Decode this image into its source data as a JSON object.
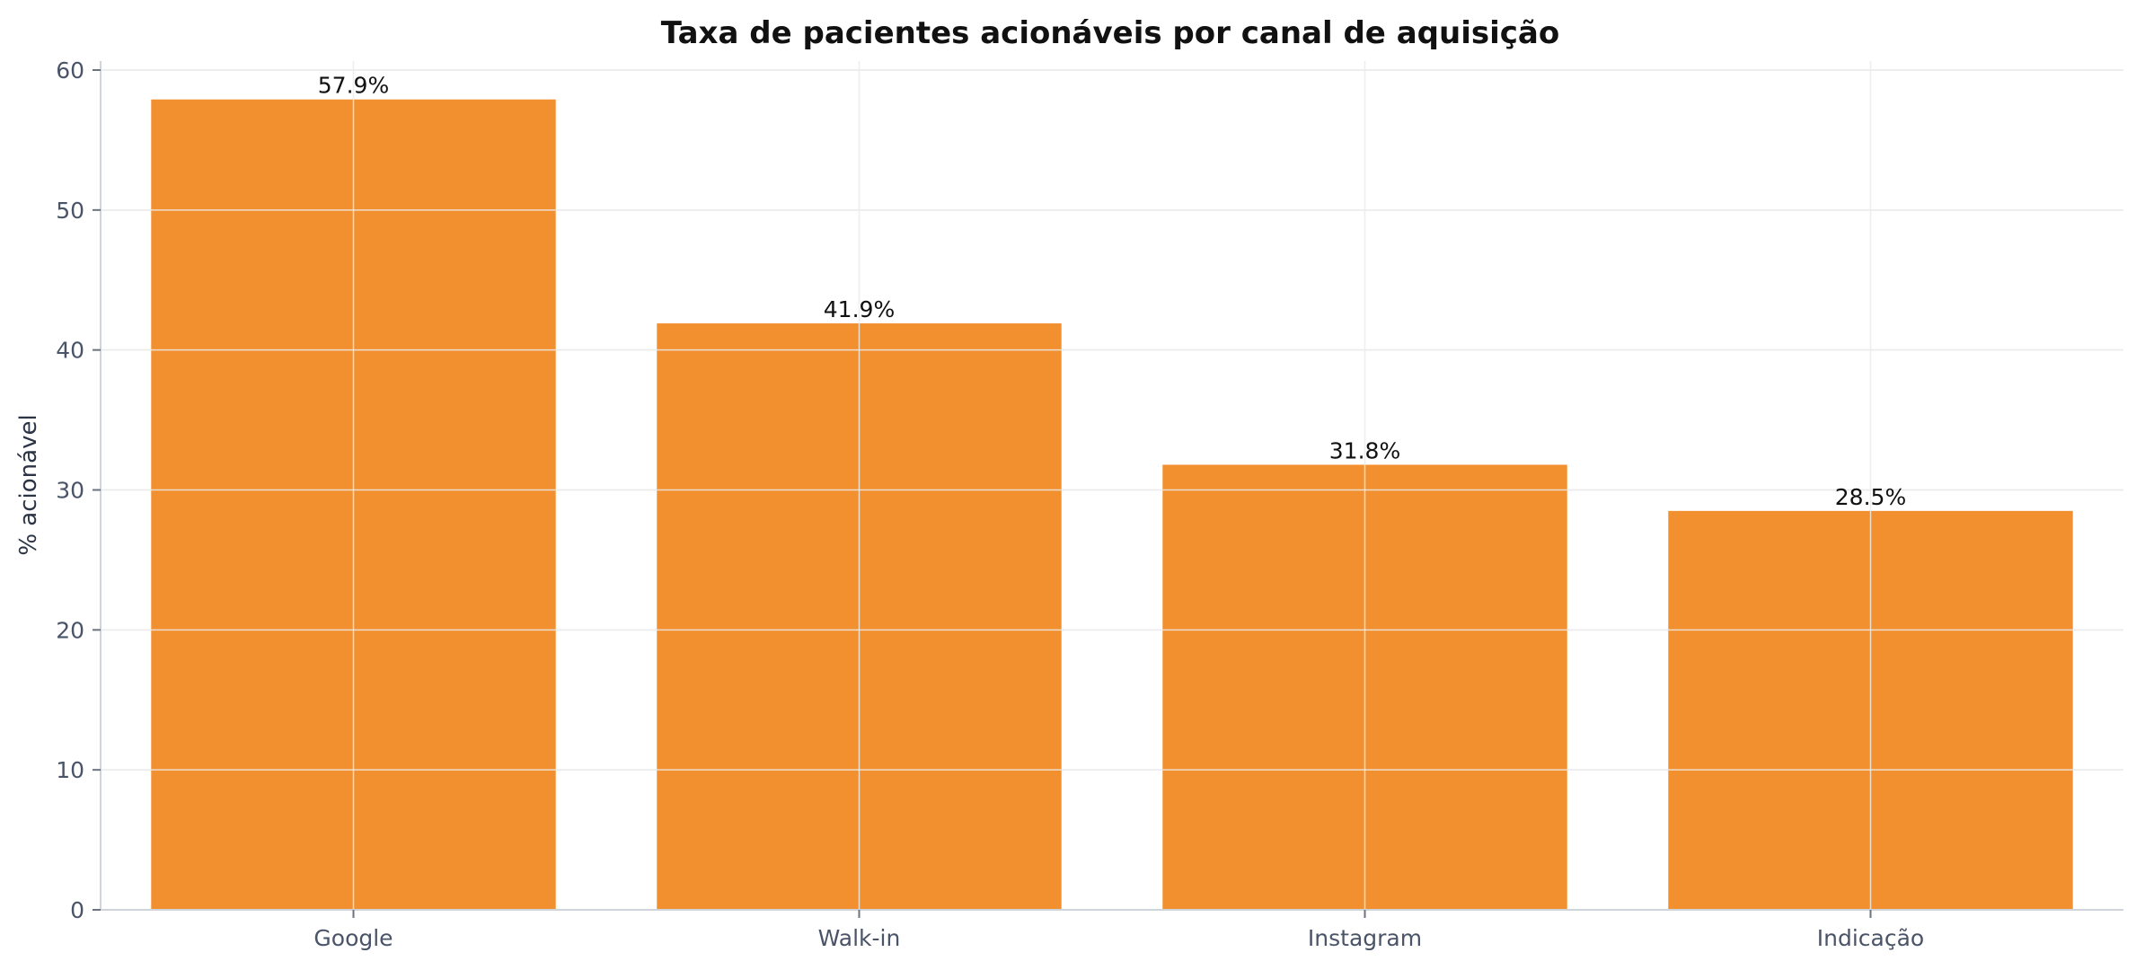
{
  "chart_data": {
    "type": "bar",
    "title": "Taxa de pacientes acionáveis por canal de aquisição",
    "xlabel": "",
    "ylabel": "% acionável",
    "categories": [
      "Google",
      "Walk-in",
      "Instagram",
      "Indicação"
    ],
    "values": [
      57.9,
      41.9,
      31.8,
      28.5
    ],
    "data_labels": [
      "57.9%",
      "41.9%",
      "31.8%",
      "28.5%"
    ],
    "ylim": [
      0,
      60
    ],
    "yticks": [
      0,
      10,
      20,
      30,
      40,
      50,
      60
    ],
    "grid": true,
    "legend": "none",
    "colors": {
      "bar": "#f28f2e",
      "grid": "#e6e6e6",
      "axis": "#cfd3da"
    }
  }
}
